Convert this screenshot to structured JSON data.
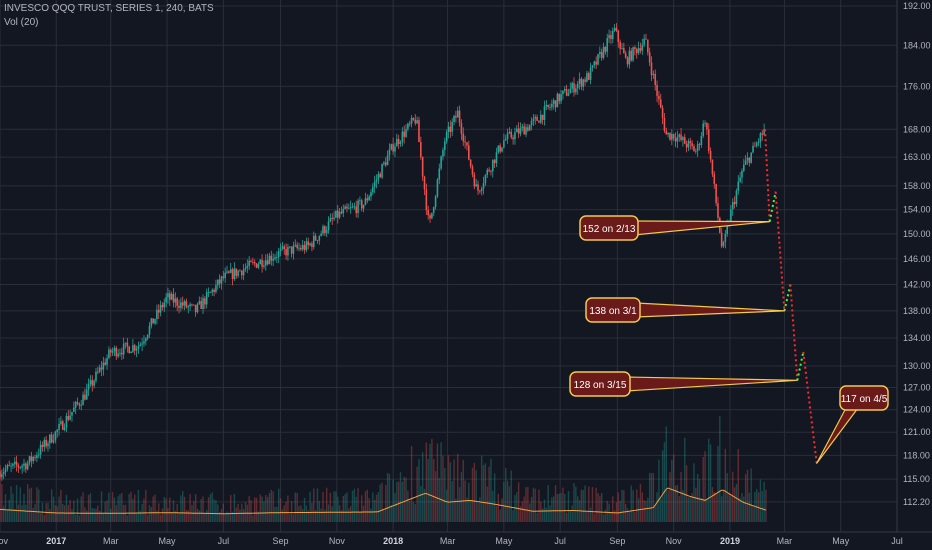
{
  "header": {
    "title": "INVESCO QQQ TRUST, SERIES 1, 240, BATS",
    "volume_label": "Vol (20)"
  },
  "colors": {
    "background": "#131722",
    "grid": "#2a2e39",
    "up": "#26a69a",
    "down": "#ef5350",
    "volume_ma": "#f0a040",
    "callout_fill": "#6b1a1a",
    "callout_stroke": "#f2c94c",
    "projection_red": "#ff2a2a",
    "projection_green": "#3cff3c",
    "text": "#b2b5be"
  },
  "chart_data": {
    "type": "line",
    "title": "INVESCO QQQ TRUST, SERIES 1, 240, BATS",
    "y_scale": "log",
    "ylim": [
      110.5,
      192
    ],
    "y_ticks": [
      "192.00",
      "184.00",
      "176.00",
      "168.00",
      "163.00",
      "158.00",
      "154.00",
      "150.00",
      "146.00",
      "142.00",
      "138.00",
      "134.00",
      "130.00",
      "127.00",
      "124.00",
      "121.00",
      "118.00",
      "115.00",
      "112.20"
    ],
    "x_ticks": [
      "Nov",
      "2017",
      "Mar",
      "May",
      "Jul",
      "Sep",
      "Nov",
      "2018",
      "Mar",
      "May",
      "Jul",
      "Sep",
      "Nov",
      "2019",
      "Mar",
      "May",
      "Jul"
    ],
    "bold_x_ticks": [
      "2017",
      "2018",
      "2019"
    ],
    "series": [
      {
        "name": "QQQ",
        "x": [
          "2016-11-01",
          "2016-12-01",
          "2017-01-01",
          "2017-02-01",
          "2017-03-01",
          "2017-04-01",
          "2017-05-01",
          "2017-06-01",
          "2017-07-01",
          "2017-08-01",
          "2017-09-01",
          "2017-10-01",
          "2017-11-01",
          "2017-12-01",
          "2018-01-01",
          "2018-01-26",
          "2018-02-09",
          "2018-02-26",
          "2018-03-12",
          "2018-04-02",
          "2018-05-01",
          "2018-06-01",
          "2018-07-01",
          "2018-08-01",
          "2018-08-29",
          "2018-09-10",
          "2018-10-01",
          "2018-10-24",
          "2018-11-01",
          "2018-11-26",
          "2018-12-05",
          "2018-12-24",
          "2019-01-01",
          "2019-01-15",
          "2019-02-01",
          "2019-02-08"
        ],
        "values": [
          116,
          117,
          121,
          126,
          132,
          133,
          140,
          138,
          143,
          145,
          147,
          148,
          153,
          155,
          165,
          170,
          151,
          166,
          171,
          157,
          166,
          169,
          174,
          178,
          187,
          181,
          185,
          167,
          167,
          164,
          170,
          147,
          153,
          161,
          166,
          168
        ]
      }
    ],
    "projections": [
      {
        "x": "2019-02-13",
        "value": 152
      },
      {
        "x": "2019-03-01",
        "value": 138
      },
      {
        "x": "2019-03-15",
        "value": 128
      },
      {
        "x": "2019-04-05",
        "value": 117
      }
    ],
    "callouts": [
      {
        "label": "152 on 2/13"
      },
      {
        "label": "138 on 3/1"
      },
      {
        "label": "128 on 3/15"
      },
      {
        "label": "117 on 4/5"
      }
    ],
    "volume": {
      "name": "Vol (20)",
      "x": [
        "2016-11-01",
        "2017-01-01",
        "2017-03-01",
        "2017-05-01",
        "2017-07-01",
        "2017-09-01",
        "2017-11-01",
        "2017-12-15",
        "2018-02-05",
        "2018-03-01",
        "2018-03-25",
        "2018-04-20",
        "2018-06-01",
        "2018-07-15",
        "2018-09-01",
        "2018-10-10",
        "2018-10-25",
        "2018-11-20",
        "2018-12-05",
        "2018-12-24",
        "2019-01-15",
        "2019-02-10"
      ],
      "values": [
        3.5,
        2.5,
        2.4,
        2.6,
        2.3,
        2.6,
        2.7,
        2.8,
        8.0,
        5.5,
        6.0,
        5.0,
        3.0,
        3.2,
        2.5,
        4.0,
        9.5,
        7.0,
        6.0,
        9.0,
        5.5,
        3.2
      ]
    },
    "grid": true,
    "legend": "none"
  }
}
